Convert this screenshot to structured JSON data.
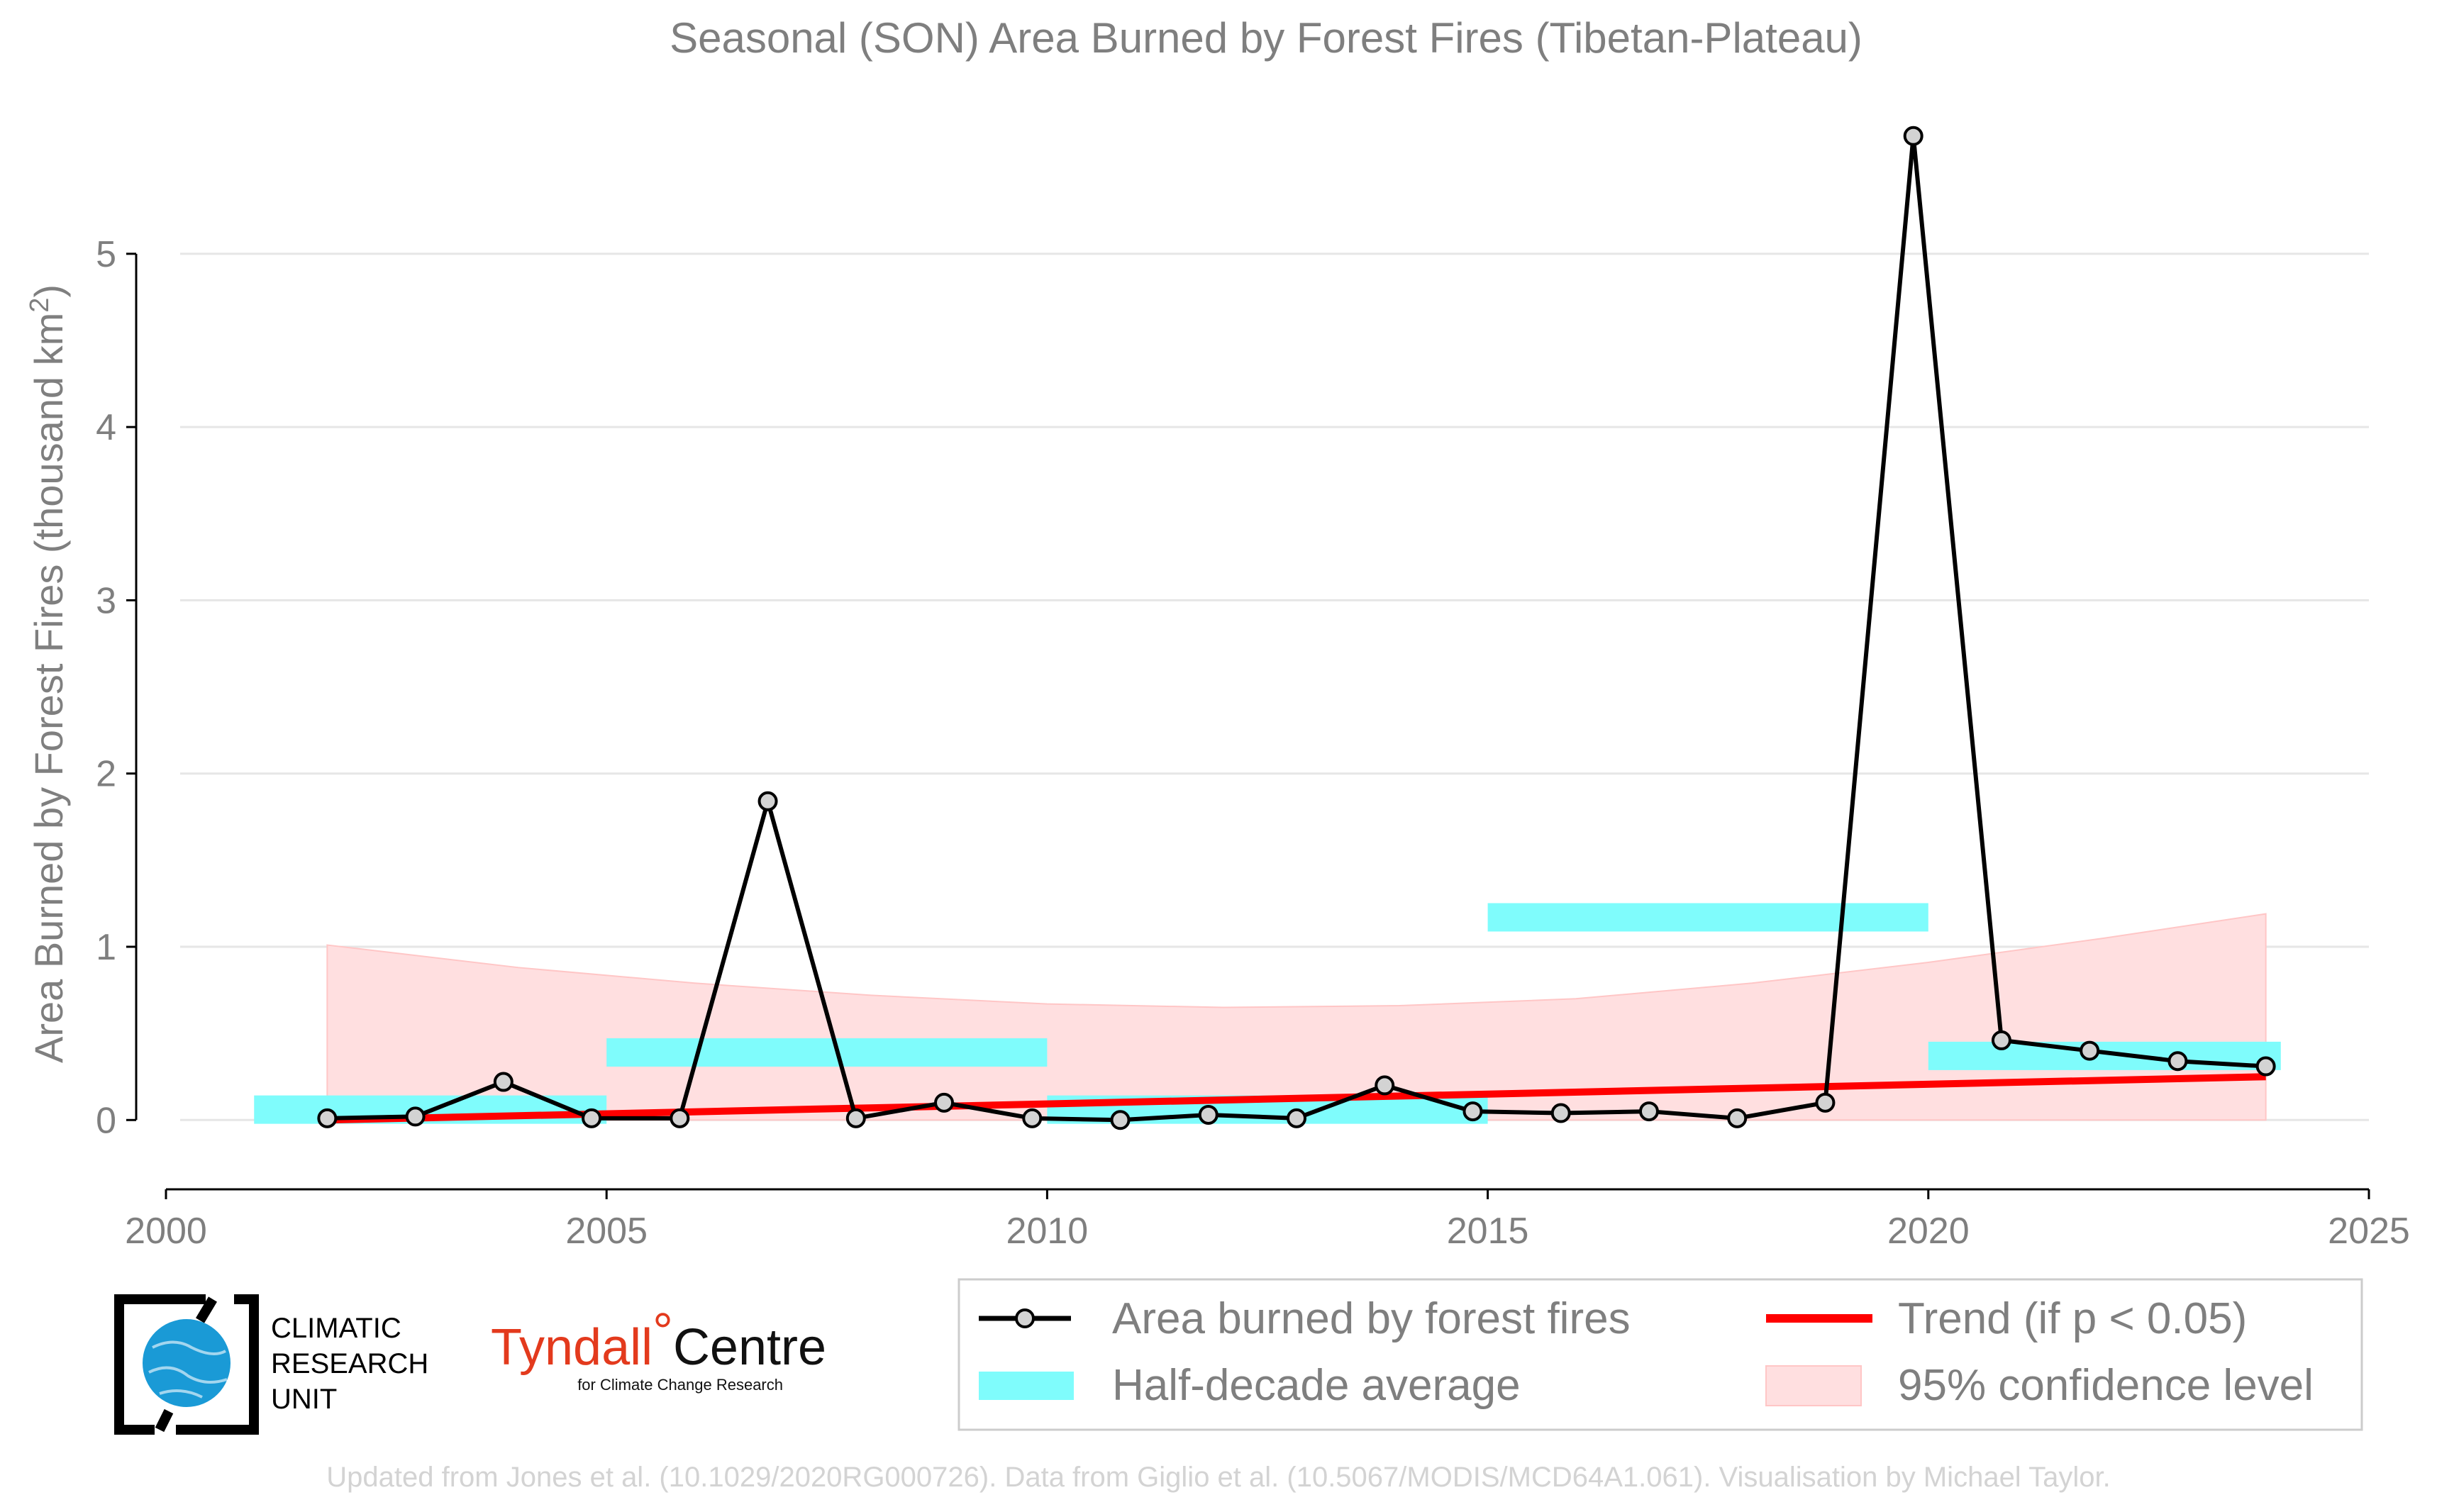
{
  "chart_data": {
    "type": "line",
    "title": "Seasonal (SON) Area Burned by Forest Fires (Tibetan-Plateau)",
    "ylabel_main": "Area Burned by Forest Fires (thousand km",
    "ylabel_sup": "2",
    "ylabel_close": ")",
    "xlim": [
      2000,
      2025
    ],
    "ylim": [
      -0.4,
      5.9
    ],
    "xticks": [
      2000,
      2005,
      2010,
      2015,
      2020,
      2025
    ],
    "yticks": [
      0,
      1,
      2,
      3,
      4,
      5
    ],
    "grid": "horizontal",
    "legend_position": "bottom",
    "series": [
      {
        "name": "Area burned by forest fires",
        "x": [
          2001.83,
          2002.83,
          2003.83,
          2004.83,
          2005.83,
          2006.83,
          2007.83,
          2008.83,
          2009.83,
          2010.83,
          2011.83,
          2012.83,
          2013.83,
          2014.83,
          2015.83,
          2016.83,
          2017.83,
          2018.83,
          2019.83,
          2020.83,
          2021.83,
          2022.83,
          2023.83
        ],
        "y": [
          0.01,
          0.02,
          0.22,
          0.01,
          0.01,
          1.84,
          0.01,
          0.1,
          0.01,
          0.0,
          0.03,
          0.01,
          0.2,
          0.05,
          0.04,
          0.05,
          0.01,
          0.1,
          5.68,
          0.46,
          0.4,
          0.34,
          0.31
        ],
        "color": "#000000"
      },
      {
        "name": "Half-decade average",
        "segments": [
          {
            "x0": 2001,
            "x1": 2005,
            "y": 0.06
          },
          {
            "x0": 2005,
            "x1": 2010,
            "y": 0.39
          },
          {
            "x0": 2010,
            "x1": 2015,
            "y": 0.06
          },
          {
            "x0": 2015,
            "x1": 2020,
            "y": 1.17
          },
          {
            "x0": 2020,
            "x1": 2024,
            "y": 0.37
          }
        ],
        "color": "#7ffcfc"
      },
      {
        "name": "Trend (if p < 0.05)",
        "x": [
          2001.83,
          2023.83
        ],
        "y": [
          0.0,
          0.25
        ],
        "color": "#ff0000"
      },
      {
        "name": "95% confidence level",
        "x": [
          2001.83,
          2004,
          2006,
          2008,
          2010,
          2012,
          2014,
          2016,
          2018,
          2020,
          2022,
          2023.83
        ],
        "upper": [
          1.01,
          0.88,
          0.79,
          0.72,
          0.67,
          0.65,
          0.66,
          0.7,
          0.79,
          0.91,
          1.05,
          1.19
        ],
        "lower": [
          0.0,
          0.0,
          0.0,
          0.0,
          0.0,
          0.0,
          0.0,
          0.0,
          0.0,
          0.0,
          0.0,
          0.0
        ],
        "color": "#ffdfe0"
      }
    ],
    "legend": [
      {
        "label": "Area burned by forest fires",
        "kind": "line-marker",
        "color": "#000000"
      },
      {
        "label": "Trend (if p < 0.05)",
        "kind": "line",
        "color": "#ff0000"
      },
      {
        "label": "Half-decade average",
        "kind": "band",
        "color": "#7ffcfc"
      },
      {
        "label": "95% confidence level",
        "kind": "patch",
        "color": "#ffdfe0"
      }
    ]
  },
  "logos": {
    "cru_lines": [
      "CLIMATIC",
      "RESEARCH",
      "UNIT"
    ],
    "tyndall_main": "Tyndall",
    "tyndall_centre": "Centre",
    "tyndall_sub": "for Climate Change Research"
  },
  "footer": "Updated from Jones et al. (10.1029/2020RG000726). Data from Giglio et al. (10.5067/MODIS/MCD64A1.061). Visualisation by Michael Taylor."
}
